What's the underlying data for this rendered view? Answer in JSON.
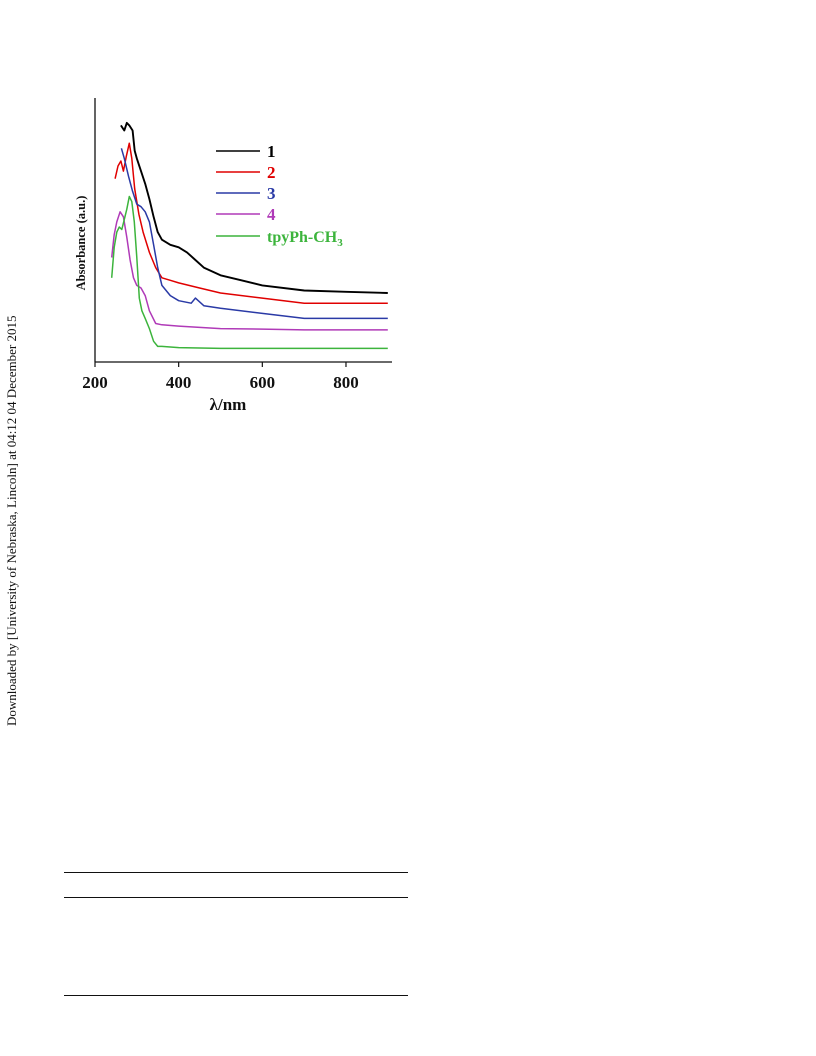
{
  "side_note": "Downloaded by [University of Nebraska, Lincoln] at 04:12 04 December 2015",
  "chart_data": {
    "type": "line",
    "title": "",
    "xlabel": "λ/nm",
    "ylabel": "Absorbance (a.u.)",
    "xlim": [
      200,
      910
    ],
    "ylim": [
      0,
      1
    ],
    "x_ticks": [
      200,
      400,
      600,
      800
    ],
    "x_tick_labels": [
      "200",
      "400",
      "600",
      "800"
    ],
    "y_ticks_shown": false,
    "grid": false,
    "legend_position": "top-right",
    "series": [
      {
        "name": "1",
        "color": "#000000",
        "x": [
          262,
          270,
          276,
          282,
          290,
          295,
          300,
          310,
          320,
          330,
          340,
          350,
          360,
          380,
          400,
          420,
          440,
          460,
          500,
          550,
          600,
          700,
          800,
          900
        ],
        "y": [
          0.9,
          0.88,
          0.91,
          0.9,
          0.88,
          0.8,
          0.77,
          0.72,
          0.67,
          0.61,
          0.54,
          0.48,
          0.45,
          0.43,
          0.42,
          0.4,
          0.37,
          0.34,
          0.31,
          0.29,
          0.27,
          0.25,
          0.245,
          0.24
        ]
      },
      {
        "name": "2",
        "color": "#e00000",
        "x": [
          248,
          255,
          262,
          268,
          275,
          282,
          288,
          295,
          305,
          315,
          330,
          345,
          360,
          380,
          400,
          450,
          500,
          600,
          700,
          800,
          900
        ],
        "y": [
          0.69,
          0.74,
          0.76,
          0.72,
          0.78,
          0.83,
          0.77,
          0.65,
          0.55,
          0.48,
          0.4,
          0.34,
          0.3,
          0.29,
          0.28,
          0.26,
          0.24,
          0.22,
          0.2,
          0.2,
          0.2
        ]
      },
      {
        "name": "3",
        "color": "#2a3aa6",
        "x": [
          263,
          270,
          280,
          290,
          300,
          310,
          320,
          330,
          340,
          350,
          360,
          380,
          400,
          430,
          440,
          460,
          500,
          600,
          700,
          800,
          900
        ],
        "y": [
          0.81,
          0.77,
          0.7,
          0.64,
          0.59,
          0.58,
          0.56,
          0.52,
          0.43,
          0.34,
          0.27,
          0.23,
          0.21,
          0.2,
          0.22,
          0.19,
          0.18,
          0.16,
          0.14,
          0.14,
          0.14
        ]
      },
      {
        "name": "4",
        "color": "#b03ab8",
        "x": [
          240,
          246,
          252,
          260,
          268,
          276,
          284,
          292,
          300,
          310,
          320,
          330,
          345,
          360,
          400,
          500,
          600,
          700,
          800,
          900
        ],
        "y": [
          0.38,
          0.47,
          0.52,
          0.56,
          0.54,
          0.46,
          0.37,
          0.3,
          0.27,
          0.26,
          0.23,
          0.17,
          0.12,
          0.115,
          0.11,
          0.1,
          0.098,
          0.095,
          0.095,
          0.095
        ]
      },
      {
        "name": "tpyPh-CH3",
        "color": "#3cb43c",
        "x": [
          240,
          246,
          252,
          258,
          264,
          270,
          276,
          282,
          288,
          294,
          300,
          306,
          312,
          320,
          330,
          340,
          350,
          360,
          400,
          500,
          600,
          700,
          800,
          900
        ],
        "y": [
          0.3,
          0.42,
          0.48,
          0.5,
          0.49,
          0.53,
          0.57,
          0.62,
          0.6,
          0.52,
          0.38,
          0.22,
          0.17,
          0.14,
          0.1,
          0.05,
          0.03,
          0.03,
          0.025,
          0.022,
          0.022,
          0.022,
          0.022,
          0.022
        ]
      }
    ]
  }
}
